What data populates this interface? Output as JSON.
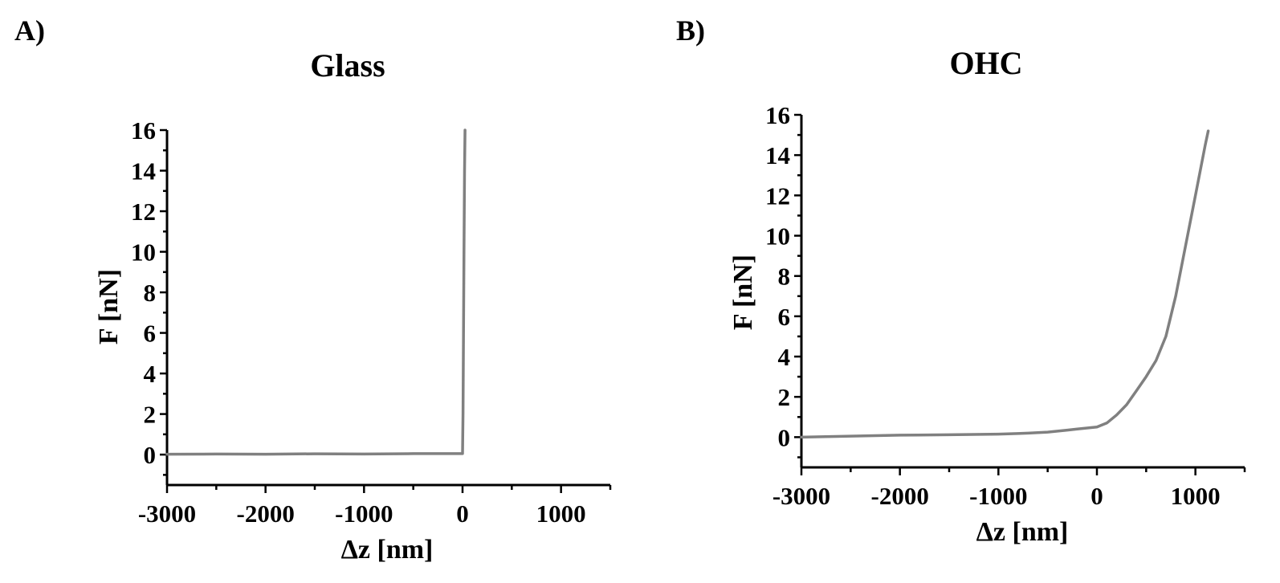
{
  "chart_data": [
    {
      "type": "line",
      "panel_label": "A)",
      "title": "Glass",
      "xlabel": "Δz [nm]",
      "ylabel": "F [nN]",
      "xlim": [
        -3000,
        1500
      ],
      "ylim": [
        -1.5,
        16
      ],
      "xticks": [
        -3000,
        -2000,
        -1000,
        0,
        1000
      ],
      "xtick_labels": [
        "-3000",
        "-2000",
        "-1000",
        "0",
        "1000"
      ],
      "yticks": [
        0,
        2,
        4,
        6,
        8,
        10,
        12,
        14,
        16
      ],
      "ytick_labels": [
        "0",
        "2",
        "4",
        "6",
        "8",
        "10",
        "12",
        "14",
        "16"
      ],
      "grid": false,
      "line_color": "#808080",
      "series": [
        {
          "x": [
            -3000,
            -2500,
            -2000,
            -1500,
            -1000,
            -500,
            -100,
            0,
            5,
            10,
            15,
            20,
            25
          ],
          "y": [
            0.02,
            0.03,
            0.02,
            0.04,
            0.03,
            0.05,
            0.05,
            0.05,
            2,
            6,
            10,
            14,
            16
          ]
        }
      ]
    },
    {
      "type": "line",
      "panel_label": "B)",
      "title": "OHC",
      "xlabel": "Δz [nm]",
      "ylabel": "F [nN]",
      "xlim": [
        -3000,
        1500
      ],
      "ylim": [
        -1.5,
        16
      ],
      "xticks": [
        -3000,
        -2000,
        -1000,
        0,
        1000
      ],
      "xtick_labels": [
        "-3000",
        "-2000",
        "-1000",
        "0",
        "1000"
      ],
      "yticks": [
        0,
        2,
        4,
        6,
        8,
        10,
        12,
        14,
        16
      ],
      "ytick_labels": [
        "0",
        "2",
        "4",
        "6",
        "8",
        "10",
        "12",
        "14",
        "16"
      ],
      "grid": false,
      "line_color": "#808080",
      "series": [
        {
          "x": [
            -3000,
            -2500,
            -2000,
            -1500,
            -1000,
            -700,
            -500,
            -300,
            -200,
            0,
            100,
            200,
            300,
            400,
            500,
            600,
            700,
            800,
            900,
            1000,
            1100,
            1130
          ],
          "y": [
            0.0,
            0.05,
            0.1,
            0.12,
            0.15,
            0.2,
            0.25,
            0.35,
            0.4,
            0.5,
            0.7,
            1.1,
            1.6,
            2.3,
            3.0,
            3.8,
            5.0,
            7.0,
            9.5,
            12.0,
            14.5,
            15.2
          ]
        }
      ]
    }
  ]
}
